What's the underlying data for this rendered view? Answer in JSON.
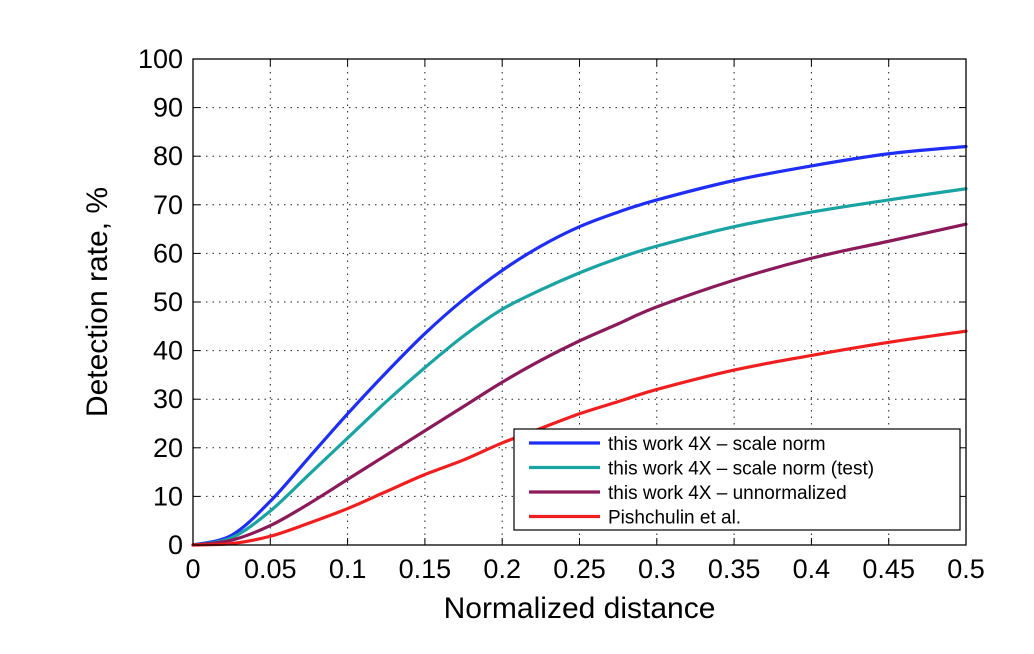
{
  "chart_data": {
    "type": "line",
    "xlabel": "Normalized distance",
    "ylabel": "Detection rate, %",
    "xlim": [
      0,
      0.5
    ],
    "ylim": [
      0,
      100
    ],
    "grid": true,
    "legend_position": "bottom-right",
    "x_ticks": [
      "0",
      "0.05",
      "0.1",
      "0.15",
      "0.2",
      "0.25",
      "0.3",
      "0.35",
      "0.4",
      "0.45",
      "0.5"
    ],
    "y_ticks": [
      "0",
      "10",
      "20",
      "30",
      "40",
      "50",
      "60",
      "70",
      "80",
      "90",
      "100"
    ],
    "x": [
      0,
      0.025,
      0.05,
      0.075,
      0.1,
      0.125,
      0.15,
      0.175,
      0.2,
      0.225,
      0.25,
      0.275,
      0.3,
      0.35,
      0.4,
      0.45,
      0.5
    ],
    "series": [
      {
        "name": "this work 4X – scale norm",
        "color": "#1f2ef5",
        "values": [
          0,
          2,
          9,
          18,
          27,
          35.5,
          43.5,
          50.5,
          56.5,
          61.5,
          65.5,
          68.5,
          71,
          75,
          78,
          80.5,
          82
        ]
      },
      {
        "name": "this work 4X – scale norm (test)",
        "color": "#1aa3a3",
        "values": [
          0,
          1.5,
          7,
          14.5,
          22,
          29.5,
          36.5,
          43,
          48.5,
          52.5,
          56,
          59,
          61.5,
          65.5,
          68.5,
          71,
          73.3
        ]
      },
      {
        "name": "this work 4X – unnormalized",
        "color": "#8b1a5a",
        "values": [
          0,
          1,
          4,
          8.5,
          13.5,
          18.5,
          23.5,
          28.5,
          33.5,
          38,
          42,
          45.5,
          49,
          54.5,
          59,
          62.5,
          66
        ]
      },
      {
        "name": "Pishchulin et al.",
        "color": "#f01f1f",
        "values": [
          0,
          0.3,
          1.8,
          4.5,
          7.5,
          11,
          14.5,
          17.5,
          21,
          24,
          27,
          29.5,
          32,
          36,
          39,
          41.7,
          44
        ]
      }
    ]
  }
}
